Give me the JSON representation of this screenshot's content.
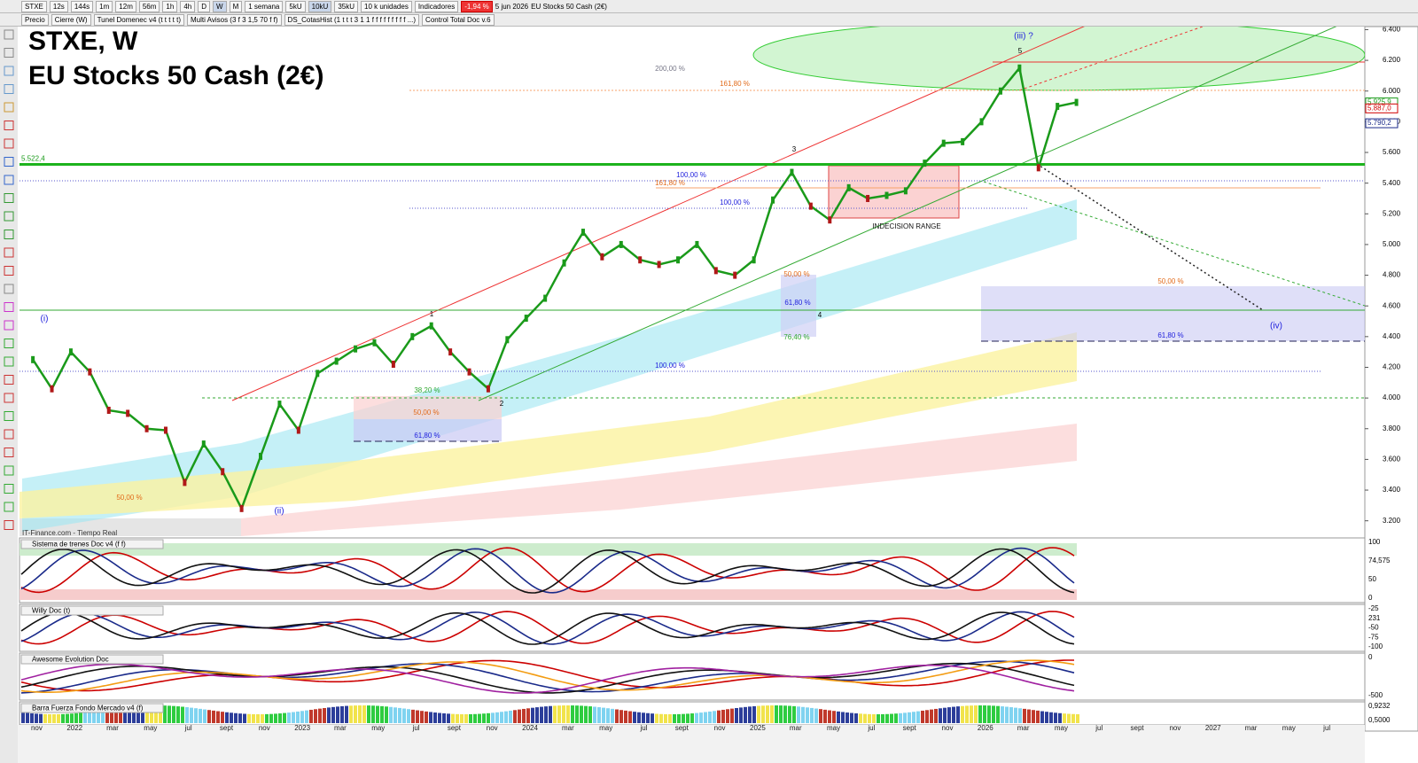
{
  "toolbar": {
    "symbol": "STXE",
    "timeframes": [
      "12s",
      "144s",
      "1m",
      "12m",
      "56m",
      "1h",
      "4h",
      "D",
      "W",
      "M"
    ],
    "period": "1 semana",
    "units": [
      "5kU",
      "10kU",
      "35kU"
    ],
    "units_select": "10 k unidades",
    "indicators": "Indicadores",
    "change": "-1,94 %",
    "date": "5 jun 2026",
    "instrument": "EU Stocks 50 Cash (2€)"
  },
  "studies": [
    "Precio",
    "Cierre (W)",
    "Tunel Domenec v4 (t t t t t)",
    "Multi Avisos (3 f 3 1,5 70 f f)",
    "DS_CotasHist (1 t t t 3 1 1 f f f f f f f f f ...)",
    "Control Total Doc v.6"
  ],
  "chart_data": {
    "type": "line",
    "title": "STXE, W",
    "subtitle": "EU Stocks 50 Cash (2€)",
    "source": "IT-Finance.com - Tiempo Real",
    "x": [
      "2021-10",
      "2021-11",
      "2021-12",
      "2022-01",
      "2022-02",
      "2022-03",
      "2022-04",
      "2022-05",
      "2022-06",
      "2022-07",
      "2022-08",
      "2022-09",
      "2022-10",
      "2022-11",
      "2022-12",
      "2023-01",
      "2023-02",
      "2023-03",
      "2023-04",
      "2023-05",
      "2023-06",
      "2023-07",
      "2023-08",
      "2023-09",
      "2023-10",
      "2023-11",
      "2023-12",
      "2024-01",
      "2024-02",
      "2024-03",
      "2024-04",
      "2024-05",
      "2024-06",
      "2024-07",
      "2024-08",
      "2024-09",
      "2024-10",
      "2024-11",
      "2024-12",
      "2025-01",
      "2025-02",
      "2025-03",
      "2025-04",
      "2025-05",
      "2025-06",
      "2025-07",
      "2025-08",
      "2025-09",
      "2025-10",
      "2025-11",
      "2025-12",
      "2026-01",
      "2026-02",
      "2026-03",
      "2026-04",
      "2026-05"
    ],
    "values": [
      4250,
      4060,
      4300,
      4170,
      3920,
      3900,
      3800,
      3790,
      3450,
      3700,
      3520,
      3280,
      3620,
      3960,
      3790,
      4160,
      4240,
      4320,
      4360,
      4220,
      4400,
      4470,
      4300,
      4170,
      4060,
      4380,
      4520,
      4650,
      4880,
      5080,
      4920,
      5000,
      4900,
      4870,
      4900,
      5000,
      4830,
      4800,
      4900,
      5290,
      5470,
      5250,
      5160,
      5370,
      5300,
      5320,
      5350,
      5530,
      5660,
      5670,
      5800,
      6000,
      6150,
      5500,
      5900,
      5926
    ],
    "color": "#1a9a1a",
    "xlim": [
      "2021-10",
      "2027-09"
    ],
    "xtick_labels": [
      "nov",
      "2022",
      "mar",
      "may",
      "jul",
      "sept",
      "nov",
      "2023",
      "mar",
      "may",
      "jul",
      "sept",
      "nov",
      "2024",
      "mar",
      "may",
      "jul",
      "sept",
      "nov",
      "2025",
      "mar",
      "may",
      "jul",
      "sept",
      "nov",
      "2026",
      "mar",
      "may",
      "jul",
      "sept",
      "nov",
      "2027",
      "mar",
      "may",
      "jul"
    ],
    "ylim": [
      3100,
      6420
    ],
    "yticks": [
      {
        "value": 3200,
        "label": "3.200"
      },
      {
        "value": 3400,
        "label": "3.400"
      },
      {
        "value": 3600,
        "label": "3.600"
      },
      {
        "value": 3800,
        "label": "3.800"
      },
      {
        "value": 4000,
        "label": "4.000"
      },
      {
        "value": 4200,
        "label": "4.200"
      },
      {
        "value": 4400,
        "label": "4.400"
      },
      {
        "value": 4600,
        "label": "4.600"
      },
      {
        "value": 4800,
        "label": "4.800"
      },
      {
        "value": 5000,
        "label": "5.000"
      },
      {
        "value": 5200,
        "label": "5.200"
      },
      {
        "value": 5400,
        "label": "5.400"
      },
      {
        "value": 5600,
        "label": "5.600"
      },
      {
        "value": 5800,
        "label": "5.800"
      },
      {
        "value": 6000,
        "label": "6.000"
      },
      {
        "value": 6200,
        "label": "6.200"
      },
      {
        "value": 6400,
        "label": "6.400"
      }
    ],
    "levels": [
      {
        "value": 5522.4,
        "label": "5.522,4"
      }
    ],
    "price_tags": [
      {
        "value": 5925.9,
        "label": "5.925,9",
        "color": "#1a9a1a"
      },
      {
        "value": 5887.0,
        "label": "5.887,0",
        "color": "#d00000"
      },
      {
        "value": 5790.2,
        "label": "5.790,2",
        "color": "#1a2a8a"
      }
    ],
    "annotations": [
      "(iii) ?",
      "5",
      "200,00 %",
      "161,80 %",
      "3",
      "100,00 %",
      "161,80 %",
      "100,00 %",
      "INDECISION RANGE",
      "50,00 %",
      "50,00 %",
      "61,80 %",
      "4",
      "(iv)",
      "61,80 %",
      "76,40 %",
      "(i)",
      "1",
      "100,00 %",
      "38,20 %",
      "2",
      "50,00 %",
      "61,80 %",
      "50,00 %",
      "(ii)"
    ]
  },
  "panels": [
    {
      "title": "Sistema de trenes Doc v4 (f f)",
      "scale": [
        "100",
        "74,575",
        "50",
        "0"
      ]
    },
    {
      "title": "Willy Doc (t)",
      "scale": [
        "-25",
        "231",
        "-50",
        "-75",
        "-100"
      ]
    },
    {
      "title": "Awesome Evolution Doc",
      "scale": [
        "0",
        "-500"
      ]
    },
    {
      "title": "Barra Fuerza Fondo Mercado v4 (f)",
      "scale": [
        "0,9232",
        "0,5000"
      ]
    }
  ]
}
